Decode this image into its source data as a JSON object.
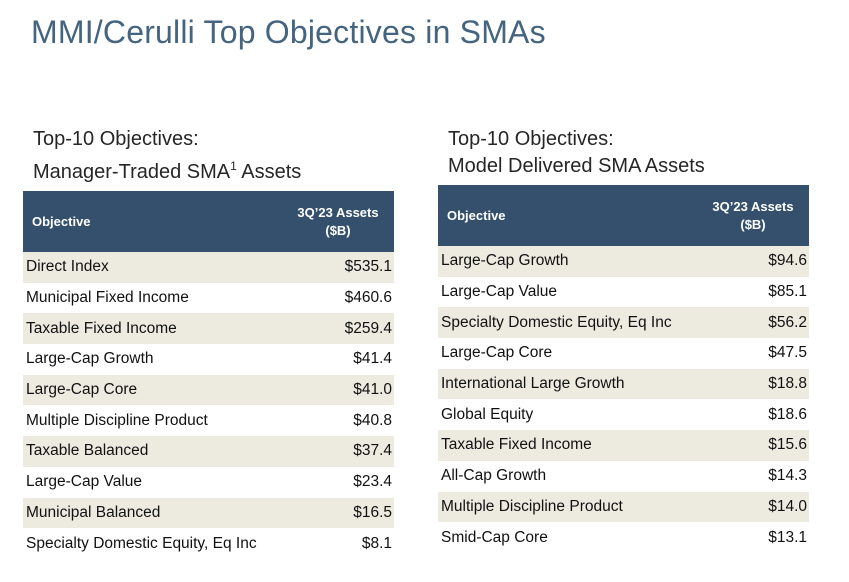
{
  "title": "MMI/Cerulli Top Objectives in SMAs",
  "left": {
    "subtitle_line1": "Top-10 Objectives:",
    "subtitle_line2": "Manager-Traded SMA",
    "subtitle_sup": "1",
    "subtitle_suffix": " Assets",
    "header_objective": "Objective",
    "header_assets_line1": "3Q’23 Assets",
    "header_assets_line2": "($B)",
    "rows": [
      {
        "objective": "Direct Index",
        "assets": "$535.1"
      },
      {
        "objective": "Municipal Fixed Income",
        "assets": "$460.6"
      },
      {
        "objective": "Taxable Fixed Income",
        "assets": "$259.4"
      },
      {
        "objective": "Large-Cap Growth",
        "assets": "$41.4"
      },
      {
        "objective": "Large-Cap Core",
        "assets": "$41.0"
      },
      {
        "objective": "Multiple Discipline Product",
        "assets": "$40.8"
      },
      {
        "objective": "Taxable Balanced",
        "assets": "$37.4"
      },
      {
        "objective": "Large-Cap Value",
        "assets": "$23.4"
      },
      {
        "objective": "Municipal Balanced",
        "assets": "$16.5"
      },
      {
        "objective": "Specialty Domestic Equity, Eq Inc",
        "assets": "$8.1"
      }
    ]
  },
  "right": {
    "subtitle_line1": "Top-10 Objectives:",
    "subtitle_line2": "Model Delivered SMA Assets",
    "header_objective": "Objective",
    "header_assets_line1": "3Q’23 Assets",
    "header_assets_line2": "($B)",
    "rows": [
      {
        "objective": "Large-Cap Growth",
        "assets": "$94.6"
      },
      {
        "objective": "Large-Cap Value",
        "assets": "$85.1"
      },
      {
        "objective": "Specialty Domestic Equity, Eq Inc",
        "assets": "$56.2"
      },
      {
        "objective": "Large-Cap Core",
        "assets": "$47.5"
      },
      {
        "objective": "International Large Growth",
        "assets": "$18.8"
      },
      {
        "objective": "Global Equity",
        "assets": "$18.6"
      },
      {
        "objective": "Taxable Fixed Income",
        "assets": "$15.6"
      },
      {
        "objective": "All-Cap Growth",
        "assets": "$14.3"
      },
      {
        "objective": "Multiple Discipline Product",
        "assets": "$14.0"
      },
      {
        "objective": "Smid-Cap Core",
        "assets": "$13.1"
      }
    ]
  },
  "colors": {
    "title": "#44647f",
    "header_bg": "#34506c",
    "row_shade": "#edebe0"
  }
}
